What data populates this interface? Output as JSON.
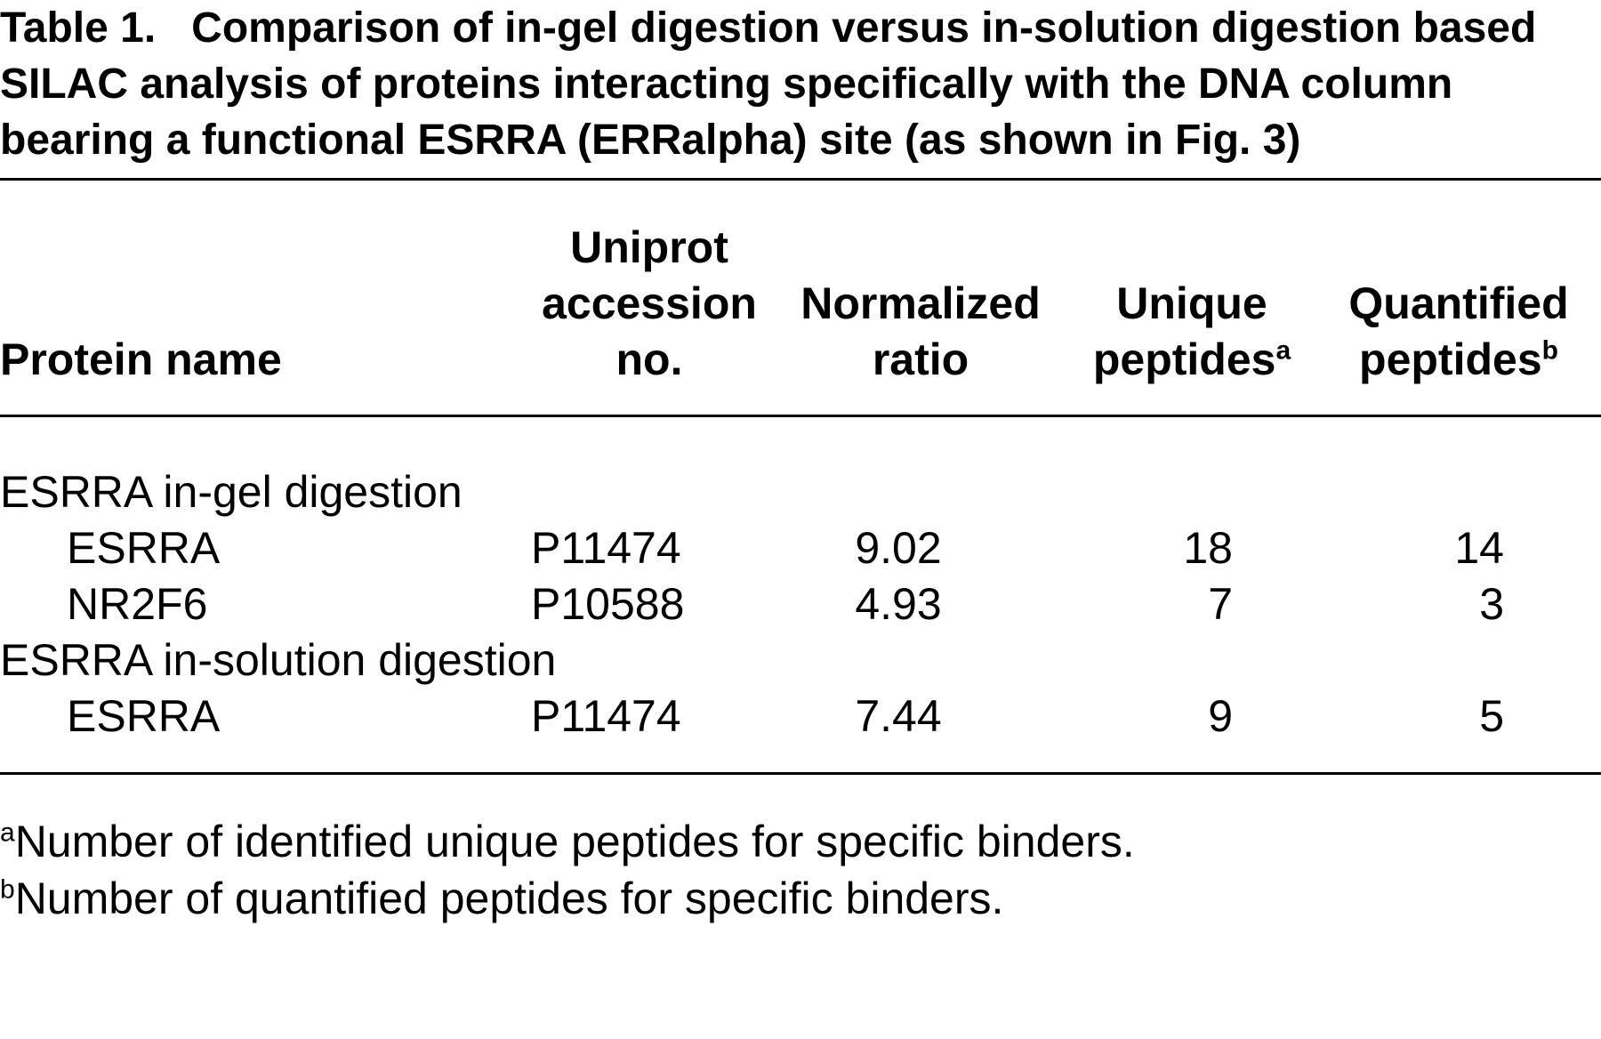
{
  "table": {
    "label": "Table 1.",
    "caption": "Comparison of in-gel digestion versus in-solution digestion based SILAC analysis of proteins interacting specifically with the DNA column bearing a functional ESRRA (ERRalpha) site (as shown in Fig. 3)",
    "columns": [
      {
        "text": "Protein name"
      },
      {
        "text": "Uniprot accession no."
      },
      {
        "text": "Normalized ratio"
      },
      {
        "text": "Unique peptides",
        "note": "a"
      },
      {
        "text": "Quantified peptides",
        "note": "b"
      }
    ],
    "groups": [
      {
        "name": "ESRRA in-gel digestion",
        "rows": [
          [
            "ESRRA",
            "P11474",
            9.02,
            18,
            14
          ],
          [
            "NR2F6",
            "P10588",
            4.93,
            7,
            3
          ]
        ]
      },
      {
        "name": "ESRRA in-solution digestion",
        "rows": [
          [
            "ESRRA",
            "P11474",
            7.44,
            9,
            5
          ]
        ]
      }
    ],
    "footnotes": [
      {
        "mark": "a",
        "text": "Number of identified unique peptides for specific binders."
      },
      {
        "mark": "b",
        "text": "Number of quantified peptides for specific binders."
      }
    ]
  }
}
